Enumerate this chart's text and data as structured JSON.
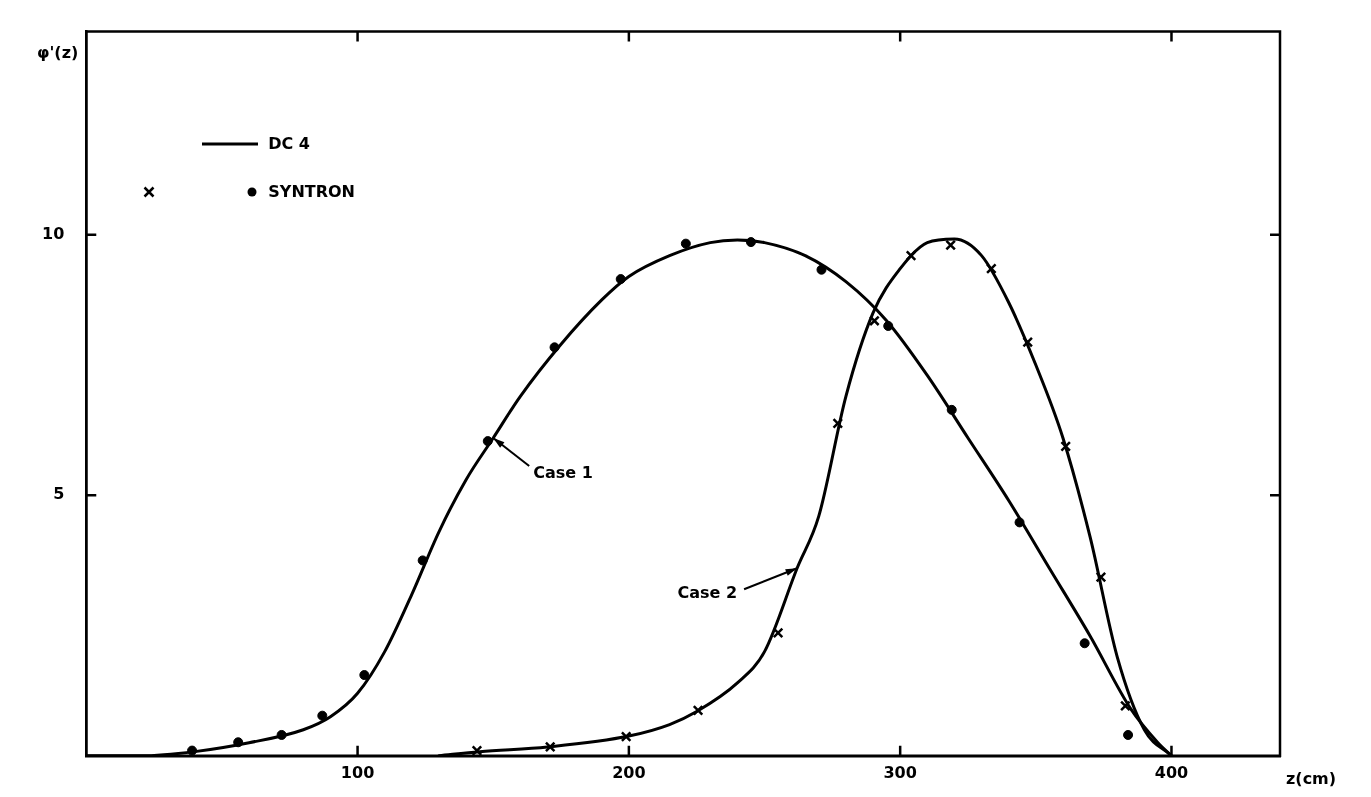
{
  "chart_data": {
    "type": "line",
    "xlabel": "z(cm)",
    "ylabel": "φ'(z)",
    "xlim": [
      0,
      440
    ],
    "ylim": [
      0,
      13.9
    ],
    "xticks": [
      100,
      200,
      300,
      400
    ],
    "yticks": [
      5,
      10
    ],
    "grid": false,
    "legend": "top left",
    "line_style": "solid",
    "annotations": [
      {
        "text": "Case 1",
        "x": 150,
        "y": 6.1
      },
      {
        "text": "Case 2",
        "x": 262,
        "y": 3.6
      }
    ],
    "series": [
      {
        "name": "DC 4",
        "marker": "none",
        "color": "#000000",
        "x": [
          0,
          20,
          40,
          60,
          80,
          90,
          100,
          110,
          120,
          130,
          140,
          150,
          160,
          175,
          190,
          200,
          215,
          230,
          240,
          250,
          265,
          280,
          295,
          310,
          325,
          340,
          355,
          370,
          385,
          395,
          400
        ],
        "values": [
          0,
          0,
          0.08,
          0.25,
          0.5,
          0.75,
          1.2,
          2.0,
          3.1,
          4.3,
          5.3,
          6.1,
          6.9,
          7.9,
          8.75,
          9.2,
          9.6,
          9.85,
          9.9,
          9.85,
          9.6,
          9.1,
          8.35,
          7.3,
          6.1,
          4.9,
          3.6,
          2.3,
          0.9,
          0.25,
          0
        ]
      },
      {
        "marker": "none",
        "color": "#000000",
        "x": [
          130,
          145,
          170,
          200,
          215,
          225,
          240,
          250,
          262,
          270,
          280,
          290,
          300,
          310,
          320,
          330,
          340,
          350,
          360,
          370,
          380,
          390,
          400
        ],
        "values": [
          0,
          0.08,
          0.17,
          0.38,
          0.6,
          0.85,
          1.4,
          2.0,
          3.6,
          4.6,
          6.9,
          8.5,
          9.35,
          9.85,
          9.92,
          9.6,
          8.7,
          7.5,
          6.1,
          4.2,
          1.9,
          0.5,
          0
        ]
      },
      {
        "name": "SYNTRON",
        "type": "scatter",
        "marker": "cross",
        "color": "#000000",
        "x": [
          144,
          171,
          199,
          225.5,
          255,
          277,
          290.5,
          304,
          318.6,
          333.6,
          347,
          361,
          374,
          383
        ],
        "values": [
          0.1,
          0.17,
          0.37,
          0.87,
          2.36,
          6.38,
          8.35,
          9.6,
          9.8,
          9.35,
          7.94,
          5.94,
          3.43,
          0.96
        ]
      },
      {
        "type": "scatter",
        "marker": "circle",
        "color": "#000000",
        "x": [
          39,
          56,
          72,
          87,
          102.5,
          124,
          148,
          172.6,
          197,
          221,
          245,
          271,
          295.6,
          319,
          344,
          368,
          384
        ],
        "values": [
          0.1,
          0.26,
          0.4,
          0.77,
          1.55,
          3.75,
          6.04,
          7.84,
          9.15,
          9.83,
          9.86,
          9.33,
          8.25,
          6.64,
          4.48,
          2.16,
          0.4
        ]
      }
    ]
  }
}
